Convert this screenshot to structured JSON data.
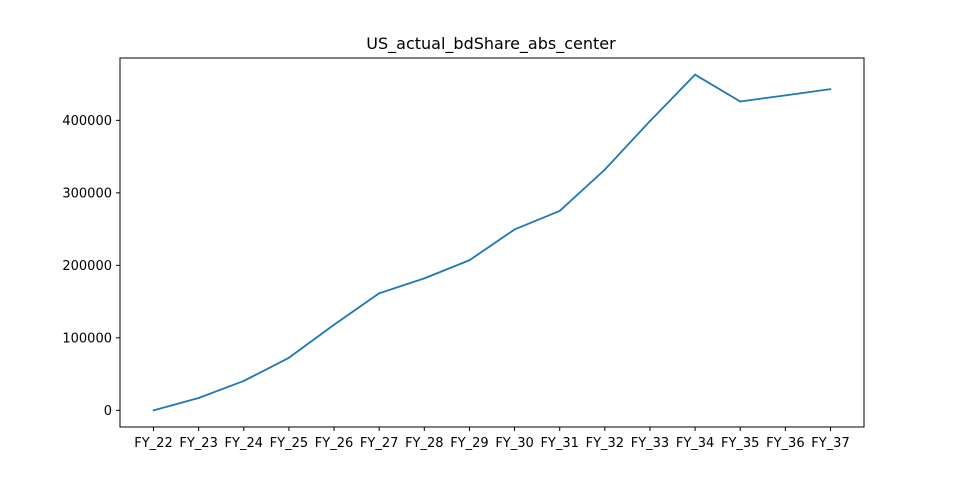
{
  "chart_data": {
    "type": "line",
    "title": "US_actual_bdShare_abs_center",
    "xlabel": "",
    "ylabel": "",
    "categories": [
      "FY_22",
      "FY_23",
      "FY_24",
      "FY_25",
      "FY_26",
      "FY_27",
      "FY_28",
      "FY_29",
      "FY_30",
      "FY_31",
      "FY_32",
      "FY_33",
      "FY_34",
      "FY_35",
      "FY_36",
      "FY_37"
    ],
    "series": [
      {
        "values": [
          0,
          17000,
          40500,
          72500,
          118000,
          161500,
          182000,
          207000,
          249500,
          275000,
          332000,
          399000,
          463000,
          426000,
          434500,
          443000
        ],
        "color": "#1f77b4"
      }
    ],
    "ylim": [
      -23000,
      486000
    ],
    "yticks": [
      0,
      100000,
      200000,
      300000,
      400000
    ],
    "ytick_labels": [
      "0",
      "100000",
      "200000",
      "300000",
      "400000"
    ],
    "grid": false,
    "legend": "none"
  }
}
